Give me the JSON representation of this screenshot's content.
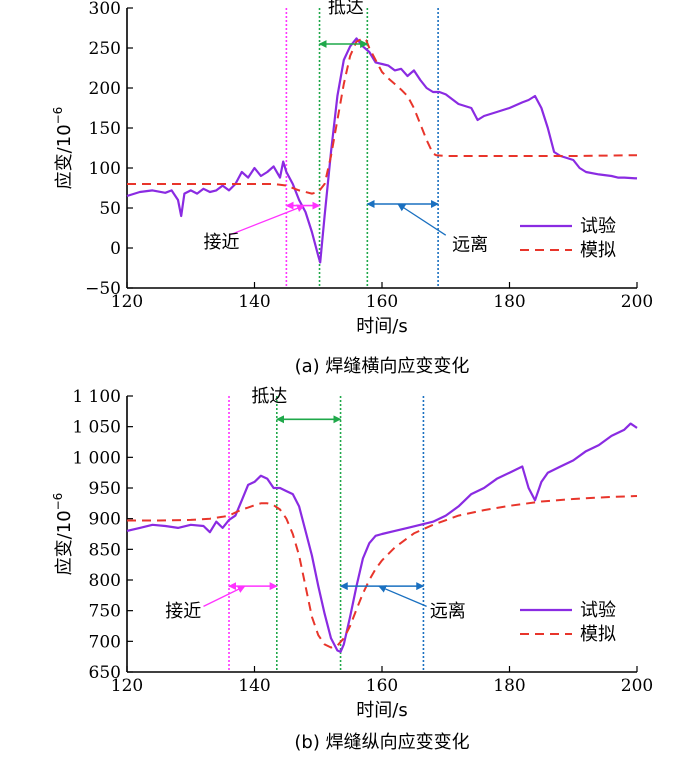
{
  "colors": {
    "test": "#8a2be2",
    "sim": "#e8352b",
    "approach": "#ff33ff",
    "arrive": "#1fa84a",
    "leave": "#1a70c0",
    "axis": "#000000"
  },
  "chart_data": [
    {
      "type": "line",
      "caption": "(a)   焊缝横向应变变化",
      "xlabel": "时间/s",
      "ylabel": "应变/10",
      "ylabel_exp": "−6",
      "xlim": [
        120,
        200
      ],
      "ylim": [
        -50,
        300
      ],
      "xticks": [
        120,
        140,
        160,
        180,
        200
      ],
      "yticks": [
        -50,
        0,
        50,
        100,
        150,
        200,
        250,
        300
      ],
      "xtick_labels": [
        "120",
        "140",
        "160",
        "180",
        "200"
      ],
      "ytick_labels": [
        "−50",
        "0",
        "50",
        "100",
        "150",
        "200",
        "250",
        "300"
      ],
      "legend_position": "lower-right",
      "series": [
        {
          "name": "试验",
          "style": "solid",
          "x": [
            120,
            122,
            124,
            126,
            127,
            128,
            128.5,
            129,
            130,
            131,
            132,
            133,
            134,
            135,
            136,
            137,
            138,
            139,
            140,
            141,
            142,
            143,
            144,
            144.5,
            145,
            146,
            147,
            148,
            149,
            150,
            150.3,
            151,
            152,
            153,
            154,
            155,
            156,
            157,
            158,
            159,
            160,
            161,
            162,
            163,
            164,
            165,
            166,
            167,
            168,
            169,
            170,
            172,
            174,
            175,
            176,
            178,
            180,
            182,
            183,
            184,
            185,
            186,
            187,
            188,
            190,
            191,
            192,
            194,
            196,
            197,
            198,
            200
          ],
          "y": [
            65,
            70,
            72,
            69,
            72,
            60,
            40,
            68,
            72,
            68,
            74,
            70,
            72,
            78,
            72,
            80,
            95,
            88,
            100,
            90,
            95,
            102,
            88,
            108,
            95,
            80,
            60,
            45,
            20,
            -10,
            -18,
            40,
            120,
            190,
            235,
            252,
            262,
            252,
            245,
            232,
            230,
            228,
            222,
            224,
            215,
            222,
            210,
            200,
            195,
            195,
            192,
            180,
            175,
            160,
            165,
            170,
            175,
            182,
            185,
            190,
            175,
            150,
            120,
            115,
            110,
            100,
            95,
            92,
            90,
            88,
            88,
            87
          ]
        },
        {
          "name": "模拟",
          "style": "dashed",
          "x": [
            120,
            130,
            140,
            143,
            145,
            147,
            149,
            150,
            151,
            152,
            153,
            154,
            155,
            156,
            157,
            157.5,
            158,
            159,
            160,
            161,
            162,
            163,
            164,
            165,
            166,
            167,
            168,
            168.5,
            170,
            180,
            190,
            200
          ],
          "y": [
            80,
            80,
            80,
            80,
            78,
            72,
            68,
            70,
            80,
            115,
            160,
            205,
            240,
            258,
            262,
            260,
            250,
            235,
            220,
            212,
            205,
            198,
            190,
            175,
            155,
            135,
            118,
            116,
            115,
            115,
            115,
            116
          ]
        }
      ],
      "markers": [
        {
          "name": "approach-start",
          "x": 145,
          "color_key": "approach"
        },
        {
          "name": "arrive-start",
          "x": 150.2,
          "color_key": "arrive"
        },
        {
          "name": "arrive-end",
          "x": 157.7,
          "color_key": "arrive"
        },
        {
          "name": "leave-end",
          "x": 168.8,
          "color_key": "leave"
        }
      ],
      "annotations": [
        {
          "text": "抵达",
          "type": "double-arrow",
          "from_x": 150.2,
          "to_x": 157.7,
          "arrow_y": 255,
          "label_x": 151.5,
          "label_y": 294,
          "color_key": "arrive"
        },
        {
          "text": "接近",
          "type": "double-arrow",
          "from_x": 145,
          "to_x": 150.2,
          "arrow_y": 53,
          "label_x": 132,
          "label_y": 0,
          "pointer_from_x": 136,
          "pointer_from_y": 16,
          "pointer_to_x": 147.8,
          "pointer_to_y": 53,
          "color_key": "approach"
        },
        {
          "text": "远离",
          "type": "double-arrow",
          "from_x": 157.7,
          "to_x": 168.8,
          "arrow_y": 55,
          "label_x": 171,
          "label_y": -3,
          "pointer_from_x": 170,
          "pointer_from_y": 16,
          "pointer_to_x": 162.5,
          "pointer_to_y": 55,
          "color_key": "leave"
        }
      ]
    },
    {
      "type": "line",
      "caption": "(b)   焊缝纵向应变变化",
      "xlabel": "时间/s",
      "ylabel": "应变/10",
      "ylabel_exp": "−6",
      "xlim": [
        120,
        200
      ],
      "ylim": [
        650,
        1100
      ],
      "xticks": [
        120,
        140,
        160,
        180,
        200
      ],
      "yticks": [
        650,
        700,
        750,
        800,
        850,
        900,
        950,
        1000,
        1050,
        1100
      ],
      "xtick_labels": [
        "120",
        "140",
        "160",
        "180",
        "200"
      ],
      "ytick_labels": [
        "650",
        "700",
        "750",
        "800",
        "850",
        "900",
        "950",
        "1 000",
        "1 050",
        "1 100"
      ],
      "legend_position": "lower-right",
      "series": [
        {
          "name": "试验",
          "style": "solid",
          "x": [
            120,
            122,
            124,
            126,
            128,
            130,
            132,
            133,
            134,
            135,
            136,
            137,
            138,
            139,
            140,
            141,
            142,
            143,
            144,
            145,
            146,
            147,
            148,
            149,
            150,
            151,
            152,
            153,
            153.5,
            154,
            155,
            156,
            157,
            158,
            159,
            160,
            162,
            164,
            166,
            168,
            170,
            172,
            174,
            176,
            178,
            180,
            181,
            182,
            183,
            184,
            185,
            186,
            188,
            190,
            192,
            194,
            196,
            198,
            199,
            200
          ],
          "y": [
            880,
            885,
            890,
            888,
            885,
            890,
            888,
            878,
            895,
            885,
            898,
            905,
            930,
            955,
            960,
            970,
            965,
            950,
            950,
            945,
            940,
            920,
            880,
            840,
            790,
            745,
            705,
            685,
            683,
            695,
            740,
            790,
            835,
            860,
            872,
            875,
            880,
            885,
            890,
            895,
            905,
            920,
            940,
            950,
            965,
            975,
            980,
            985,
            950,
            930,
            960,
            975,
            985,
            995,
            1010,
            1020,
            1035,
            1045,
            1055,
            1048
          ]
        },
        {
          "name": "模拟",
          "style": "dashed",
          "x": [
            120,
            125,
            130,
            133,
            135,
            136,
            137,
            138,
            139,
            140,
            141,
            142,
            143,
            144,
            145,
            146,
            147,
            148,
            149,
            150,
            151,
            152,
            153,
            154,
            155,
            156,
            157,
            158,
            159,
            160,
            162,
            165,
            168,
            172,
            176,
            180,
            185,
            190,
            195,
            200
          ],
          "y": [
            897,
            897,
            898,
            900,
            903,
            905,
            910,
            915,
            918,
            922,
            925,
            925,
            922,
            915,
            900,
            875,
            840,
            790,
            740,
            710,
            695,
            690,
            693,
            705,
            725,
            752,
            778,
            800,
            818,
            832,
            853,
            876,
            890,
            905,
            914,
            921,
            928,
            932,
            935,
            937
          ]
        }
      ],
      "markers": [
        {
          "name": "approach-start",
          "x": 136,
          "color_key": "approach"
        },
        {
          "name": "arrive-start",
          "x": 143.5,
          "color_key": "arrive"
        },
        {
          "name": "arrive-end",
          "x": 153.5,
          "color_key": "arrive"
        },
        {
          "name": "leave-end",
          "x": 166.5,
          "color_key": "leave"
        }
      ],
      "annotations": [
        {
          "text": "抵达",
          "type": "double-arrow",
          "from_x": 143.5,
          "to_x": 153.5,
          "arrow_y": 1062,
          "label_x": 139.5,
          "label_y": 1090,
          "color_key": "arrive"
        },
        {
          "text": "接近",
          "type": "double-arrow",
          "from_x": 136,
          "to_x": 143.5,
          "arrow_y": 790,
          "label_x": 126,
          "label_y": 740,
          "pointer_from_x": 132,
          "pointer_from_y": 757,
          "pointer_to_x": 138.5,
          "pointer_to_y": 790,
          "color_key": "approach"
        },
        {
          "text": "远离",
          "type": "double-arrow",
          "from_x": 153.5,
          "to_x": 166.5,
          "arrow_y": 790,
          "label_x": 167.5,
          "label_y": 740,
          "pointer_from_x": 167,
          "pointer_from_y": 757,
          "pointer_to_x": 159.5,
          "pointer_to_y": 790,
          "color_key": "leave"
        }
      ]
    }
  ]
}
